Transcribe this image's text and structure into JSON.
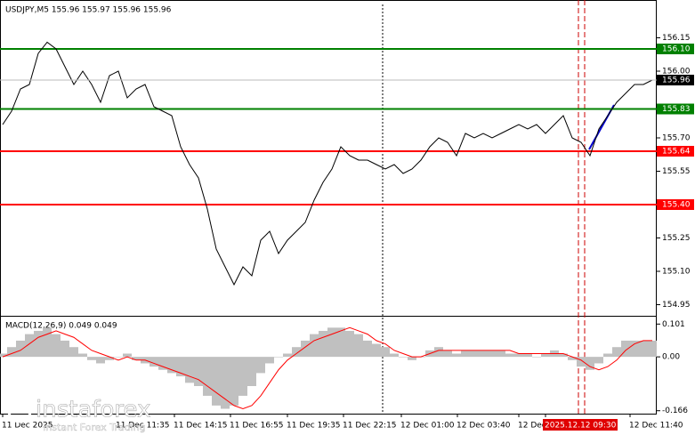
{
  "chart_data": {
    "type": "line",
    "header": "USDJPY,M5  155.96 155.97 155.96 155.96",
    "values": [
      155.76,
      155.82,
      155.92,
      155.94,
      156.08,
      156.13,
      156.1,
      156.02,
      155.94,
      156.0,
      155.94,
      155.86,
      155.98,
      156.0,
      155.88,
      155.92,
      155.94,
      155.84,
      155.82,
      155.8,
      155.66,
      155.58,
      155.52,
      155.38,
      155.2,
      155.12,
      155.04,
      155.12,
      155.08,
      155.24,
      155.28,
      155.18,
      155.24,
      155.28,
      155.32,
      155.42,
      155.5,
      155.56,
      155.66,
      155.62,
      155.6,
      155.6,
      155.58,
      155.56,
      155.58,
      155.54,
      155.56,
      155.6,
      155.66,
      155.7,
      155.68,
      155.62,
      155.72,
      155.7,
      155.72,
      155.7,
      155.72,
      155.74,
      155.76,
      155.74,
      155.76,
      155.72,
      155.76,
      155.8,
      155.7,
      155.68,
      155.62,
      155.74,
      155.8,
      155.86,
      155.9,
      155.94,
      155.94,
      155.96
    ],
    "color": "#000000",
    "ylim": [
      154.9,
      156.3
    ],
    "yticks": [
      {
        "value": 156.15,
        "label": "156.15"
      },
      {
        "value": 156.0,
        "label": "156.00"
      },
      {
        "value": 155.7,
        "label": "155.70"
      },
      {
        "value": 155.55,
        "label": "155.55"
      },
      {
        "value": 155.25,
        "label": "155.25"
      },
      {
        "value": 155.1,
        "label": "155.10"
      },
      {
        "value": 154.95,
        "label": "154.95"
      }
    ],
    "levels": [
      {
        "value": 156.1,
        "label": "156.10",
        "color": "#008000"
      },
      {
        "value": 155.83,
        "label": "155.83",
        "color": "#008000"
      },
      {
        "value": 155.64,
        "label": "155.64",
        "color": "#ff0000"
      },
      {
        "value": 155.4,
        "label": "155.40",
        "color": "#ff0000"
      }
    ],
    "current_price": 155.96,
    "macd": {
      "label": "MACD(12,26,9) 0.049 0.049",
      "histogram": [
        0.01,
        0.03,
        0.05,
        0.07,
        0.08,
        0.09,
        0.07,
        0.05,
        0.03,
        0.01,
        -0.01,
        -0.02,
        -0.01,
        0.0,
        0.01,
        -0.01,
        -0.02,
        -0.03,
        -0.04,
        -0.05,
        -0.06,
        -0.08,
        -0.09,
        -0.12,
        -0.15,
        -0.16,
        -0.15,
        -0.12,
        -0.09,
        -0.05,
        -0.02,
        0.0,
        0.01,
        0.03,
        0.05,
        0.07,
        0.08,
        0.09,
        0.09,
        0.08,
        0.07,
        0.05,
        0.04,
        0.03,
        0.01,
        0.0,
        -0.01,
        0.0,
        0.02,
        0.03,
        0.02,
        0.01,
        0.02,
        0.02,
        0.02,
        0.02,
        0.02,
        0.01,
        0.01,
        0.01,
        0.0,
        0.01,
        0.02,
        0.01,
        -0.01,
        -0.03,
        -0.04,
        -0.02,
        0.01,
        0.03,
        0.05,
        0.05,
        0.05,
        0.05
      ],
      "signal": [
        0.0,
        0.01,
        0.02,
        0.04,
        0.06,
        0.07,
        0.08,
        0.07,
        0.06,
        0.04,
        0.02,
        0.01,
        0.0,
        -0.01,
        0.0,
        -0.01,
        -0.01,
        -0.02,
        -0.03,
        -0.04,
        -0.05,
        -0.06,
        -0.07,
        -0.09,
        -0.11,
        -0.13,
        -0.15,
        -0.16,
        -0.15,
        -0.12,
        -0.08,
        -0.04,
        -0.01,
        0.01,
        0.03,
        0.05,
        0.06,
        0.07,
        0.08,
        0.09,
        0.08,
        0.07,
        0.05,
        0.04,
        0.02,
        0.01,
        0.0,
        0.0,
        0.01,
        0.02,
        0.02,
        0.02,
        0.02,
        0.02,
        0.02,
        0.02,
        0.02,
        0.02,
        0.01,
        0.01,
        0.01,
        0.01,
        0.01,
        0.01,
        0.0,
        -0.01,
        -0.03,
        -0.04,
        -0.03,
        -0.01,
        0.02,
        0.04,
        0.05,
        0.05
      ],
      "histogram_color": "#c0c0c0",
      "signal_color": "#ff0000",
      "ylim": [
        -0.175,
        0.121
      ],
      "yticks": [
        0.101,
        {
          "value": 0,
          "label": "0.00"
        },
        -0.166
      ]
    },
    "xtick_labels": [
      "11 Dec 2025",
      "11 Dec 11:35",
      "11 Dec 14:15",
      "11 Dec 16:55",
      "11 Dec 19:35",
      "11 Dec 22:15",
      "12 Dec 01:00",
      "12 Dec 03:40",
      "12 Dec",
      "2025.12.12 09:30",
      "12 Dec 11:40"
    ],
    "logo": {
      "name": "instaforex",
      "tagline": "Instant Forex Trading"
    }
  }
}
